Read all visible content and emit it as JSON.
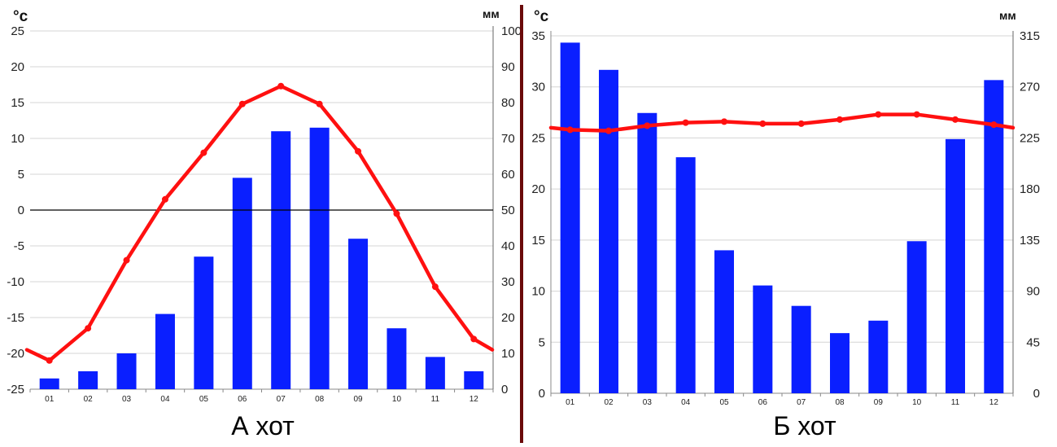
{
  "colors": {
    "bar": "#0a1fff",
    "line": "#ff1010",
    "grid": "#d4d4d4",
    "divider": "#6a0a0a"
  },
  "chart_data": [
    {
      "type": "bar+line",
      "title": "А хот",
      "left_axis_unit": "°с",
      "right_axis_unit": "мм",
      "categories": [
        "01",
        "02",
        "03",
        "04",
        "05",
        "06",
        "07",
        "08",
        "09",
        "10",
        "11",
        "12"
      ],
      "ylim_left": [
        -25,
        25
      ],
      "yticks_left": [
        "25",
        "20",
        "15",
        "10",
        "5",
        "0",
        "-5",
        "-10",
        "-15",
        "-20",
        "-25"
      ],
      "ylim_right": [
        0,
        100
      ],
      "yticks_right": [
        "100",
        "90",
        "80",
        "70",
        "60",
        "50",
        "40",
        "30",
        "20",
        "10",
        "0"
      ],
      "series": [
        {
          "kind": "bar",
          "axis": "right",
          "values": [
            3,
            5,
            10,
            21,
            37,
            59,
            72,
            73,
            42,
            17,
            9,
            5
          ]
        },
        {
          "kind": "line",
          "axis": "left",
          "values": [
            -21,
            -16.5,
            -7,
            1.5,
            8,
            14.8,
            17.3,
            14.8,
            8.2,
            -0.5,
            -10.7,
            -18
          ]
        }
      ],
      "line_end_left": -19.5,
      "line_end_right": -19.5,
      "zero_line": true,
      "grid": true
    },
    {
      "type": "bar+line",
      "title": "Б хот",
      "left_axis_unit": "°с",
      "right_axis_unit": "мм",
      "categories": [
        "01",
        "02",
        "03",
        "04",
        "05",
        "06",
        "07",
        "08",
        "09",
        "10",
        "11",
        "12"
      ],
      "ylim_left": [
        0,
        35
      ],
      "yticks_left": [
        "35",
        "30",
        "25",
        "20",
        "15",
        "10",
        "5",
        "0"
      ],
      "ylim_right": [
        0,
        315
      ],
      "yticks_right": [
        "315",
        "270",
        "225",
        "180",
        "135",
        "90",
        "45",
        "0"
      ],
      "series": [
        {
          "kind": "bar",
          "axis": "right",
          "values": [
            309,
            285,
            247,
            208,
            126,
            95,
            77,
            53,
            64,
            134,
            224,
            276
          ]
        },
        {
          "kind": "line",
          "axis": "left",
          "values": [
            25.8,
            25.7,
            26.2,
            26.5,
            26.6,
            26.4,
            26.4,
            26.8,
            27.3,
            27.3,
            26.8,
            26.3
          ]
        }
      ],
      "line_end_left": 26.0,
      "line_end_right": 26.0,
      "zero_line": false,
      "grid": true
    }
  ]
}
